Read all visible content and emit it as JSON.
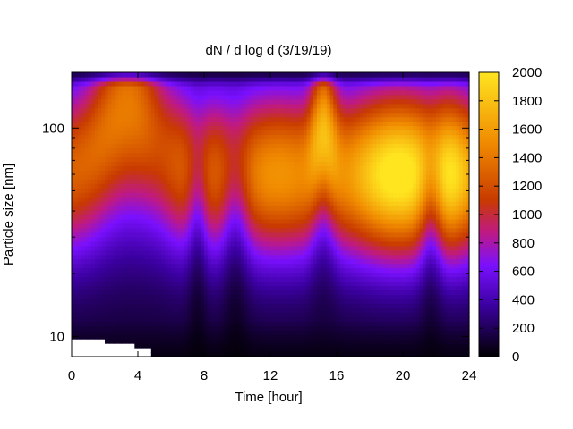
{
  "chart_data": {
    "type": "heatmap",
    "title": "dN / d log d (3/19/19)",
    "xlabel": "Time [hour]",
    "ylabel": "Particle size [nm]",
    "xlim": [
      0,
      24
    ],
    "ylim": [
      8,
      185
    ],
    "y_scale": "log",
    "x_ticks": [
      "0",
      "4",
      "8",
      "12",
      "16",
      "20",
      "24"
    ],
    "y_ticks": [
      "10",
      "100"
    ],
    "colorbar": {
      "range": [
        0,
        2000
      ],
      "ticks": [
        "0",
        "200",
        "400",
        "600",
        "800",
        "1000",
        "1200",
        "1400",
        "1600",
        "1800",
        "2000"
      ],
      "colormap": [
        "#000000",
        "#3b00a0",
        "#7a10ff",
        "#c01a80",
        "#c83a00",
        "#f08a00",
        "#ffe520"
      ]
    },
    "dominant_mode_nm": [
      {
        "time": 3.5,
        "size": 130,
        "value": 1150
      },
      {
        "time": 6.8,
        "size": 55,
        "value": 1050
      },
      {
        "time": 9.5,
        "size": 60,
        "value": 1150
      },
      {
        "time": 12.5,
        "size": 65,
        "value": 1300
      },
      {
        "time": 15.2,
        "size": 90,
        "value": 1500
      },
      {
        "time": 18.5,
        "size": 65,
        "value": 1850
      },
      {
        "time": 20.3,
        "size": 65,
        "value": 1950
      },
      {
        "time": 23.0,
        "size": 65,
        "value": 1550
      }
    ],
    "low_intensity_dips": [
      {
        "time": 7.6,
        "size": 9,
        "value": 80
      },
      {
        "time": 9.9,
        "size": 9,
        "value": 80
      },
      {
        "time": 21.7,
        "size": 13,
        "value": 200
      }
    ],
    "missing_data_region": {
      "time_range": [
        0,
        4.8
      ],
      "size_max": 10
    }
  }
}
